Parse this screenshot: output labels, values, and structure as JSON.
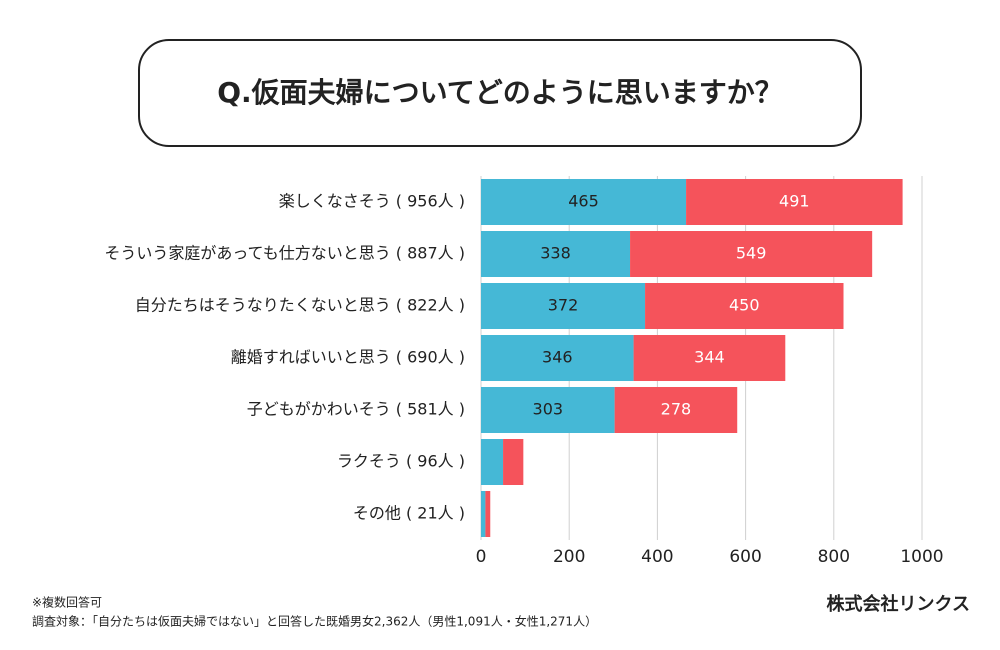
{
  "chart_data": {
    "type": "stacked-barh",
    "title": "Q.仮面夫婦についてどのように思いますか？",
    "categories": [
      "楽しくなさそう ( 956人 )",
      "そういう家庭があっても仕方ないと思う ( 887人 )",
      "自分たちはそうなりたくないと思う ( 822人 )",
      "離婚すればいいと思う ( 690人 )",
      "子どもがかわいそう ( 581人 )",
      "ラクそう ( 96人 )",
      "その他 ( 21人 )"
    ],
    "series": [
      {
        "color": "#45b8d6",
        "values": [
          465,
          338,
          372,
          346,
          303,
          50,
          10
        ]
      },
      {
        "color": "#f5535b",
        "values": [
          491,
          549,
          450,
          344,
          278,
          46,
          11
        ]
      }
    ],
    "xlim": [
      0,
      1000
    ],
    "xticks": [
      0,
      200,
      400,
      600,
      800,
      1000
    ],
    "grid": true,
    "notes": [
      "※複数回答可",
      "調査対象：「自分たちは仮面夫婦ではない」と回答した既婚男女2,362人（男性1,091人・女性1,271人）"
    ],
    "source": "株式会社リンクス"
  }
}
